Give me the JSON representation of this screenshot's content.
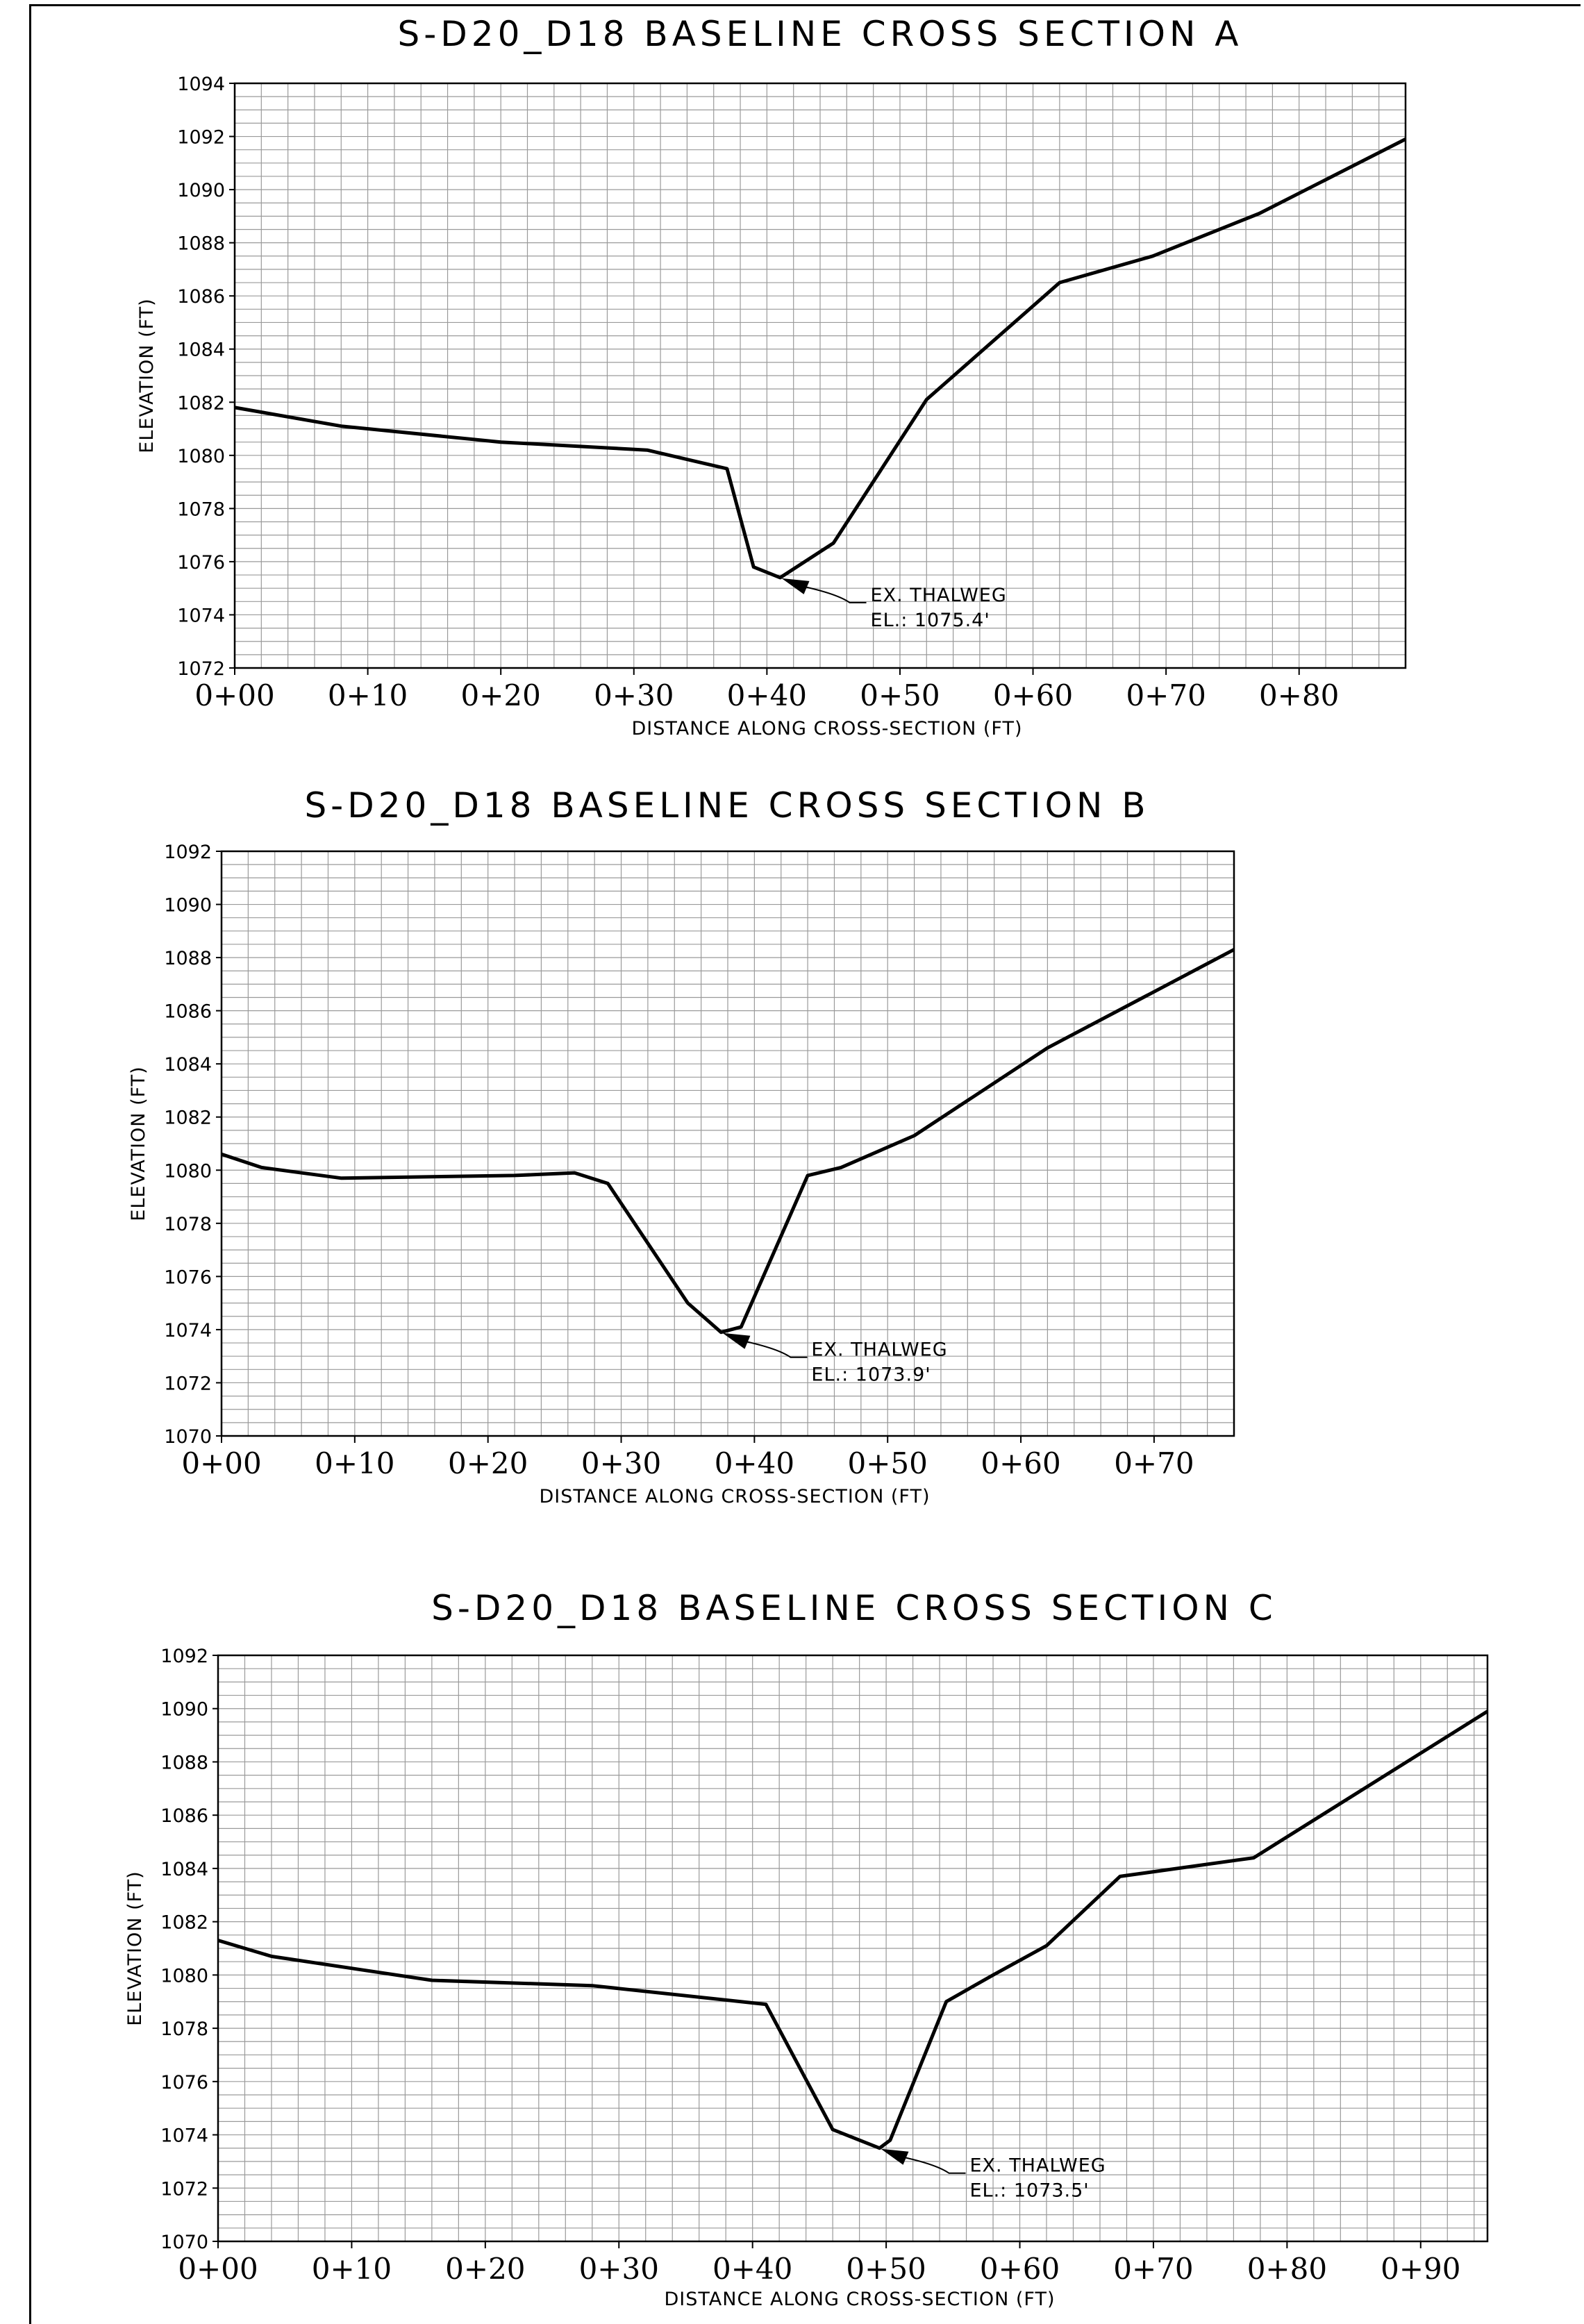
{
  "chart_data": [
    {
      "type": "line",
      "title": "S-D20_D18 BASELINE CROSS SECTION A",
      "xlabel": "DISTANCE ALONG CROSS-SECTION (FT)",
      "ylabel": "ELEVATION (FT)",
      "xlim": [
        0,
        88
      ],
      "ylim": [
        1072,
        1094
      ],
      "grid": true,
      "x_ticks": [
        0,
        10,
        20,
        30,
        40,
        50,
        60,
        70,
        80
      ],
      "x_tick_labels": [
        "0+00",
        "0+10",
        "0+20",
        "0+30",
        "0+40",
        "0+50",
        "0+60",
        "0+70",
        "0+80"
      ],
      "y_ticks": [
        1072,
        1074,
        1076,
        1078,
        1080,
        1082,
        1084,
        1086,
        1088,
        1090,
        1092,
        1094
      ],
      "y_tick_labels": [
        "1072",
        "1074",
        "1076",
        "1078",
        "1080",
        "1082",
        "1084",
        "1086",
        "1088",
        "1090",
        "1092",
        "1094"
      ],
      "series": [
        {
          "x": [
            0,
            8,
            20,
            31,
            37,
            39,
            41,
            45,
            52,
            62,
            69,
            77,
            88
          ],
          "y": [
            1081.8,
            1081.1,
            1080.5,
            1080.2,
            1079.5,
            1075.8,
            1075.4,
            1076.7,
            1082.1,
            1086.5,
            1087.5,
            1089.1,
            1091.9
          ]
        }
      ],
      "annotation": {
        "line1": "EX. THALWEG",
        "line2": "EL.: 1075.4'",
        "x": 41,
        "y": 1075.4
      }
    },
    {
      "type": "line",
      "title": "S-D20_D18 BASELINE CROSS SECTION B",
      "xlabel": "DISTANCE ALONG CROSS-SECTION (FT)",
      "ylabel": "ELEVATION (FT)",
      "xlim": [
        0,
        76
      ],
      "ylim": [
        1070,
        1092
      ],
      "grid": true,
      "x_ticks": [
        0,
        10,
        20,
        30,
        40,
        50,
        60,
        70
      ],
      "x_tick_labels": [
        "0+00",
        "0+10",
        "0+20",
        "0+30",
        "0+40",
        "0+50",
        "0+60",
        "0+70"
      ],
      "y_ticks": [
        1070,
        1072,
        1074,
        1076,
        1078,
        1080,
        1082,
        1084,
        1086,
        1088,
        1090,
        1092
      ],
      "y_tick_labels": [
        "1070",
        "1072",
        "1074",
        "1076",
        "1078",
        "1080",
        "1082",
        "1084",
        "1086",
        "1088",
        "1090",
        "1092"
      ],
      "series": [
        {
          "x": [
            0,
            3,
            9,
            22,
            26.5,
            29,
            35,
            37.5,
            39,
            44,
            46.5,
            52,
            62,
            76
          ],
          "y": [
            1080.6,
            1080.1,
            1079.7,
            1079.8,
            1079.9,
            1079.5,
            1075.0,
            1073.9,
            1074.1,
            1079.8,
            1080.1,
            1081.3,
            1084.6,
            1088.3
          ]
        }
      ],
      "annotation": {
        "line1": "EX. THALWEG",
        "line2": "EL.: 1073.9'",
        "x": 37.5,
        "y": 1073.9
      }
    },
    {
      "type": "line",
      "title": "S-D20_D18 BASELINE CROSS SECTION C",
      "xlabel": "DISTANCE ALONG CROSS-SECTION (FT)",
      "ylabel": "ELEVATION (FT)",
      "xlim": [
        0,
        95
      ],
      "ylim": [
        1070,
        1092
      ],
      "grid": true,
      "x_ticks": [
        0,
        10,
        20,
        30,
        40,
        50,
        60,
        70,
        80,
        90
      ],
      "x_tick_labels": [
        "0+00",
        "0+10",
        "0+20",
        "0+30",
        "0+40",
        "0+50",
        "0+60",
        "0+70",
        "0+80",
        "0+90"
      ],
      "y_ticks": [
        1070,
        1072,
        1074,
        1076,
        1078,
        1080,
        1082,
        1084,
        1086,
        1088,
        1090,
        1092
      ],
      "y_tick_labels": [
        "1070",
        "1072",
        "1074",
        "1076",
        "1078",
        "1080",
        "1082",
        "1084",
        "1086",
        "1088",
        "1090",
        "1092"
      ],
      "series": [
        {
          "x": [
            0,
            4,
            16,
            28,
            41,
            46,
            49.5,
            50.3,
            54.5,
            58,
            62,
            67.5,
            77.5,
            95
          ],
          "y": [
            1081.3,
            1080.7,
            1079.8,
            1079.6,
            1078.9,
            1074.2,
            1073.5,
            1073.8,
            1079.0,
            1080.0,
            1081.1,
            1083.7,
            1084.4,
            1089.9
          ]
        }
      ],
      "annotation": {
        "line1": "EX. THALWEG",
        "line2": "EL.: 1073.5'",
        "x": 49.5,
        "y": 1073.5
      }
    }
  ]
}
